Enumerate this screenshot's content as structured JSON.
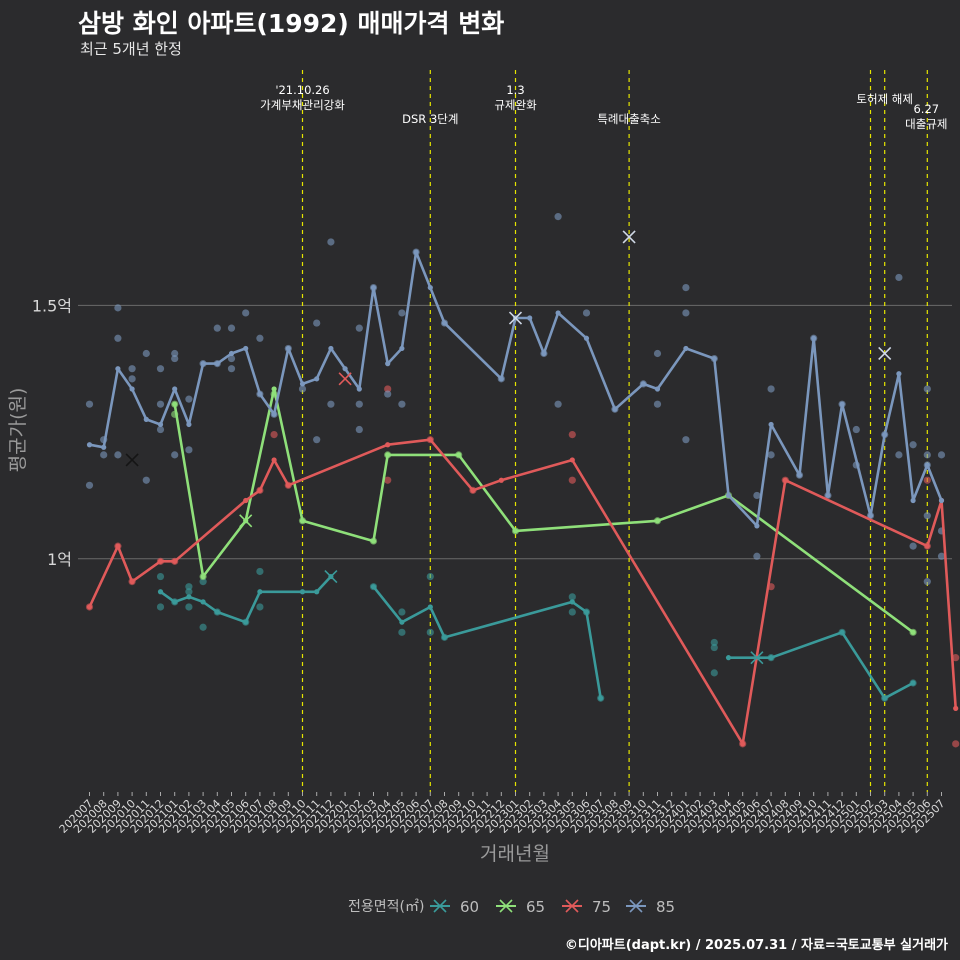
{
  "chart_data": {
    "type": "line",
    "title": "삼방 화인 아파트(1992) 매매가격 변화",
    "subtitle": "최근 5개년 한정",
    "xlabel": "거래년월",
    "ylabel": "평균가(원)",
    "caption": "©디아파트(dapt.kr) / 2025.07.31 / 자료=국토교통부 실거래가",
    "legend_title": "전용면적(㎡)",
    "legend_position": "bottom",
    "grid": true,
    "y_unit": "억",
    "ylim": [
      0.54,
      1.98
    ],
    "y_ticks": [
      {
        "value": 1.0,
        "label": "1억"
      },
      {
        "value": 1.5,
        "label": "1.5억"
      }
    ],
    "categories": [
      "202007",
      "202008",
      "202009",
      "202010",
      "202011",
      "202012",
      "202101",
      "202102",
      "202103",
      "202104",
      "202105",
      "202106",
      "202107",
      "202108",
      "202109",
      "202110",
      "202111",
      "202112",
      "202201",
      "202202",
      "202203",
      "202204",
      "202205",
      "202206",
      "202207",
      "202208",
      "202209",
      "202210",
      "202211",
      "202212",
      "202301",
      "202302",
      "202303",
      "202304",
      "202305",
      "202306",
      "202307",
      "202308",
      "202309",
      "202310",
      "202311",
      "202312",
      "202401",
      "202402",
      "202403",
      "202404",
      "202405",
      "202406",
      "202407",
      "202408",
      "202409",
      "202410",
      "202411",
      "202412",
      "202501",
      "202502",
      "202503",
      "202504",
      "202505",
      "202506",
      "202507"
    ],
    "events": [
      {
        "x": "202110",
        "label": "'21.10.26\n가계부채관리강화",
        "row": 0
      },
      {
        "x": "202207",
        "label": "DSR 3단계",
        "row": 1
      },
      {
        "x": "202301",
        "label": "1.3\n규제완화",
        "row": 0
      },
      {
        "x": "202309",
        "label": "특례대출축소",
        "row": 1
      },
      {
        "x": "202502",
        "label": "",
        "row": 0
      },
      {
        "x": "202503",
        "label": "토허제 해제",
        "row": 0
      },
      {
        "x": "202506",
        "label": "6.27\n대출규제",
        "row": 2
      }
    ],
    "series": [
      {
        "name": "60",
        "color": "#3a9a9a",
        "line": [
          [
            "202012",
            0.935
          ],
          [
            "202101",
            0.915
          ],
          [
            "202102",
            0.925
          ],
          [
            "202103",
            0.915
          ],
          [
            "202104",
            0.895
          ],
          [
            "202106",
            0.875
          ],
          [
            "202107",
            0.935
          ],
          [
            "202110",
            0.935
          ],
          [
            "202111",
            0.935
          ],
          [
            "202112",
            0.965
          ],
          [
            null,
            null
          ],
          [
            "202203",
            0.945
          ],
          [
            "202205",
            0.875
          ],
          [
            "202207",
            0.905
          ],
          [
            "202208",
            0.845
          ],
          [
            "202305",
            0.915
          ],
          [
            "202306",
            0.895
          ],
          [
            "202307",
            0.725
          ],
          [
            null,
            null
          ],
          [
            "202404",
            0.805
          ],
          [
            "202406",
            0.805
          ],
          [
            "202407",
            0.805
          ],
          [
            "202412",
            0.855
          ],
          [
            "202503",
            0.725
          ],
          [
            "202505",
            0.755
          ]
        ],
        "points": [
          [
            "202012",
            0.905
          ],
          [
            "202012",
            0.965
          ],
          [
            "202101",
            0.915
          ],
          [
            "202102",
            0.905
          ],
          [
            "202102",
            0.935
          ],
          [
            "202102",
            0.945
          ],
          [
            "202103",
            0.865
          ],
          [
            "202103",
            0.955
          ],
          [
            "202104",
            0.895
          ],
          [
            "202106",
            0.875
          ],
          [
            "202107",
            0.905
          ],
          [
            "202107",
            0.975
          ],
          [
            "202203",
            0.945
          ],
          [
            "202205",
            0.855
          ],
          [
            "202205",
            0.895
          ],
          [
            "202207",
            0.855
          ],
          [
            "202207",
            0.965
          ],
          [
            "202208",
            0.845
          ],
          [
            "202305",
            0.895
          ],
          [
            "202305",
            0.925
          ],
          [
            "202306",
            0.895
          ],
          [
            "202307",
            0.725
          ],
          [
            "202403",
            0.825
          ],
          [
            "202403",
            0.835
          ],
          [
            "202403",
            0.775
          ],
          [
            "202407",
            0.805
          ],
          [
            "202412",
            0.855
          ],
          [
            "202503",
            0.725
          ],
          [
            "202505",
            0.755
          ]
        ],
        "markers": [
          [
            "202112",
            0.965
          ],
          [
            "202406",
            0.805
          ]
        ]
      },
      {
        "name": "65",
        "color": "#8fe07a",
        "line": [
          [
            "202101",
            1.305
          ],
          [
            "202103",
            0.965
          ],
          [
            "202106",
            1.075
          ],
          [
            "202108",
            1.335
          ],
          [
            "202110",
            1.075
          ],
          [
            "202203",
            1.035
          ],
          [
            "202204",
            1.205
          ],
          [
            "202209",
            1.205
          ],
          [
            "202301",
            1.055
          ],
          [
            "202311",
            1.075
          ],
          [
            "202404",
            1.125
          ],
          [
            "202505",
            0.855
          ]
        ],
        "points": [
          [
            "202101",
            1.305
          ],
          [
            "202101",
            1.285
          ],
          [
            "202103",
            0.965
          ],
          [
            "202108",
            1.325
          ],
          [
            "202110",
            1.075
          ],
          [
            "202203",
            1.035
          ],
          [
            "202204",
            1.205
          ],
          [
            "202209",
            1.205
          ],
          [
            "202301",
            1.055
          ],
          [
            "202311",
            1.075
          ],
          [
            "202404",
            1.125
          ],
          [
            "202505",
            0.855
          ]
        ],
        "markers": [
          [
            "202106",
            1.075
          ]
        ]
      },
      {
        "name": "75",
        "color": "#e05a5a",
        "line": [
          [
            "202007",
            0.905
          ],
          [
            "202009",
            1.025
          ],
          [
            "202010",
            0.955
          ],
          [
            "202012",
            0.995
          ],
          [
            "202101",
            0.995
          ],
          [
            "202106",
            1.115
          ],
          [
            "202107",
            1.135
          ],
          [
            "202108",
            1.195
          ],
          [
            "202109",
            1.145
          ],
          [
            "202204",
            1.225
          ],
          [
            "202207",
            1.235
          ],
          [
            "202210",
            1.135
          ],
          [
            "202212",
            1.155
          ],
          [
            "202305",
            1.195
          ],
          [
            "202405",
            0.635
          ],
          [
            "202408",
            1.155
          ],
          [
            "202506",
            1.025
          ],
          [
            "202507",
            1.115
          ],
          [
            "202508",
            0.705
          ]
        ],
        "points": [
          [
            "202007",
            0.905
          ],
          [
            "202009",
            1.025
          ],
          [
            "202010",
            0.955
          ],
          [
            "202012",
            0.995
          ],
          [
            "202101",
            0.995
          ],
          [
            "202107",
            1.135
          ],
          [
            "202108",
            1.245
          ],
          [
            "202109",
            1.145
          ],
          [
            "202204",
            1.335
          ],
          [
            "202204",
            1.155
          ],
          [
            "202207",
            1.235
          ],
          [
            "202210",
            1.135
          ],
          [
            "202305",
            1.245
          ],
          [
            "202305",
            1.155
          ],
          [
            "202405",
            0.635
          ],
          [
            "202407",
            0.945
          ],
          [
            "202408",
            1.155
          ],
          [
            "202506",
            1.025
          ],
          [
            "202506",
            1.155
          ],
          [
            "202508",
            0.805
          ],
          [
            "202508",
            0.635
          ]
        ],
        "markers": [
          [
            "202201",
            1.355
          ]
        ]
      },
      {
        "name": "85",
        "color": "#7b97bd",
        "line": [
          [
            "202007",
            1.225
          ],
          [
            "202008",
            1.22
          ],
          [
            "202009",
            1.375
          ],
          [
            "202010",
            1.335
          ],
          [
            "202011",
            1.275
          ],
          [
            "202012",
            1.265
          ],
          [
            "202101",
            1.335
          ],
          [
            "202102",
            1.265
          ],
          [
            "202103",
            1.385
          ],
          [
            "202104",
            1.385
          ],
          [
            "202105",
            1.405
          ],
          [
            "202106",
            1.415
          ],
          [
            "202107",
            1.325
          ],
          [
            "202108",
            1.285
          ],
          [
            "202109",
            1.415
          ],
          [
            "202110",
            1.345
          ],
          [
            "202111",
            1.355
          ],
          [
            "202112",
            1.415
          ],
          [
            "202201",
            1.375
          ],
          [
            "202202",
            1.335
          ],
          [
            "202203",
            1.535
          ],
          [
            "202204",
            1.385
          ],
          [
            "202205",
            1.415
          ],
          [
            "202206",
            1.605
          ],
          [
            "202207",
            1.535
          ],
          [
            "202208",
            1.465
          ],
          [
            "202212",
            1.355
          ],
          [
            "202301",
            1.475
          ],
          [
            "202302",
            1.475
          ],
          [
            "202303",
            1.405
          ],
          [
            "202304",
            1.485
          ],
          [
            "202306",
            1.435
          ],
          [
            "202308",
            1.295
          ],
          [
            "202310",
            1.345
          ],
          [
            "202311",
            1.335
          ],
          [
            "202401",
            1.415
          ],
          [
            "202403",
            1.395
          ],
          [
            "202404",
            1.125
          ],
          [
            "202406",
            1.065
          ],
          [
            "202407",
            1.265
          ],
          [
            "202409",
            1.165
          ],
          [
            "202410",
            1.435
          ],
          [
            "202411",
            1.125
          ],
          [
            "202412",
            1.305
          ],
          [
            "202502",
            1.085
          ],
          [
            "202503",
            1.245
          ],
          [
            "202504",
            1.365
          ],
          [
            "202505",
            1.115
          ],
          [
            "202506",
            1.185
          ],
          [
            "202507",
            1.115
          ]
        ],
        "points": [
          [
            "202007",
            1.305
          ],
          [
            "202007",
            1.145
          ],
          [
            "202008",
            1.235
          ],
          [
            "202008",
            1.205
          ],
          [
            "202009",
            1.495
          ],
          [
            "202009",
            1.435
          ],
          [
            "202009",
            1.205
          ],
          [
            "202010",
            1.375
          ],
          [
            "202010",
            1.355
          ],
          [
            "202011",
            1.405
          ],
          [
            "202011",
            1.155
          ],
          [
            "202012",
            1.375
          ],
          [
            "202012",
            1.305
          ],
          [
            "202012",
            1.255
          ],
          [
            "202101",
            1.405
          ],
          [
            "202101",
            1.395
          ],
          [
            "202101",
            1.205
          ],
          [
            "202102",
            1.315
          ],
          [
            "202102",
            1.215
          ],
          [
            "202103",
            1.385
          ],
          [
            "202104",
            1.455
          ],
          [
            "202104",
            1.385
          ],
          [
            "202105",
            1.455
          ],
          [
            "202105",
            1.395
          ],
          [
            "202105",
            1.375
          ],
          [
            "202106",
            1.485
          ],
          [
            "202107",
            1.435
          ],
          [
            "202107",
            1.325
          ],
          [
            "202108",
            1.285
          ],
          [
            "202109",
            1.415
          ],
          [
            "202110",
            1.335
          ],
          [
            "202111",
            1.465
          ],
          [
            "202111",
            1.235
          ],
          [
            "202112",
            1.625
          ],
          [
            "202112",
            1.305
          ],
          [
            "202202",
            1.455
          ],
          [
            "202202",
            1.305
          ],
          [
            "202202",
            1.255
          ],
          [
            "202203",
            1.535
          ],
          [
            "202204",
            1.325
          ],
          [
            "202205",
            1.485
          ],
          [
            "202205",
            1.305
          ],
          [
            "202206",
            1.605
          ],
          [
            "202208",
            1.465
          ],
          [
            "202212",
            1.355
          ],
          [
            "202303",
            1.405
          ],
          [
            "202304",
            1.675
          ],
          [
            "202304",
            1.305
          ],
          [
            "202306",
            1.485
          ],
          [
            "202308",
            1.295
          ],
          [
            "202310",
            1.345
          ],
          [
            "202311",
            1.405
          ],
          [
            "202311",
            1.305
          ],
          [
            "202401",
            1.535
          ],
          [
            "202401",
            1.485
          ],
          [
            "202401",
            1.235
          ],
          [
            "202403",
            1.395
          ],
          [
            "202406",
            1.125
          ],
          [
            "202406",
            1.005
          ],
          [
            "202407",
            1.335
          ],
          [
            "202407",
            1.205
          ],
          [
            "202409",
            1.165
          ],
          [
            "202410",
            1.435
          ],
          [
            "202411",
            1.125
          ],
          [
            "202412",
            1.305
          ],
          [
            "202501",
            1.255
          ],
          [
            "202501",
            1.185
          ],
          [
            "202502",
            1.085
          ],
          [
            "202503",
            1.245
          ],
          [
            "202504",
            1.555
          ],
          [
            "202504",
            1.205
          ],
          [
            "202505",
            1.225
          ],
          [
            "202505",
            1.025
          ],
          [
            "202506",
            1.335
          ],
          [
            "202506",
            1.205
          ],
          [
            "202506",
            1.185
          ],
          [
            "202506",
            1.085
          ],
          [
            "202506",
            0.955
          ],
          [
            "202507",
            1.205
          ],
          [
            "202507",
            1.055
          ],
          [
            "202507",
            1.005
          ]
        ],
        "markers": [
          [
            "202010",
            1.195
          ],
          [
            "202301",
            1.475
          ],
          [
            "202309",
            1.635
          ],
          [
            "202503",
            1.405
          ]
        ]
      }
    ]
  }
}
